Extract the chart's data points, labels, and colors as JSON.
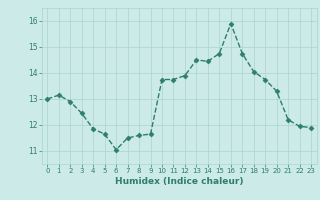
{
  "x": [
    0,
    1,
    2,
    3,
    4,
    5,
    6,
    7,
    8,
    9,
    10,
    11,
    12,
    13,
    14,
    15,
    16,
    17,
    18,
    19,
    20,
    21,
    22,
    23
  ],
  "y": [
    13.0,
    13.15,
    12.9,
    12.45,
    11.85,
    11.65,
    11.05,
    11.5,
    11.6,
    11.65,
    13.75,
    13.75,
    13.9,
    14.5,
    14.45,
    14.75,
    15.9,
    14.75,
    14.05,
    13.75,
    13.3,
    12.2,
    11.95,
    11.9
  ],
  "line_color": "#2e7d6e",
  "marker": "D",
  "marker_size": 2.5,
  "linewidth": 1.0,
  "bg_color": "#cceae8",
  "grid_color": "#aad4d0",
  "xlabel": "Humidex (Indice chaleur)",
  "xlim": [
    -0.5,
    23.5
  ],
  "ylim": [
    10.5,
    16.5
  ],
  "yticks": [
    11,
    12,
    13,
    14,
    15,
    16
  ],
  "xtick_fontsize": 5.0,
  "ytick_fontsize": 5.5,
  "xlabel_fontsize": 6.5,
  "xlabel_fontweight": "bold"
}
